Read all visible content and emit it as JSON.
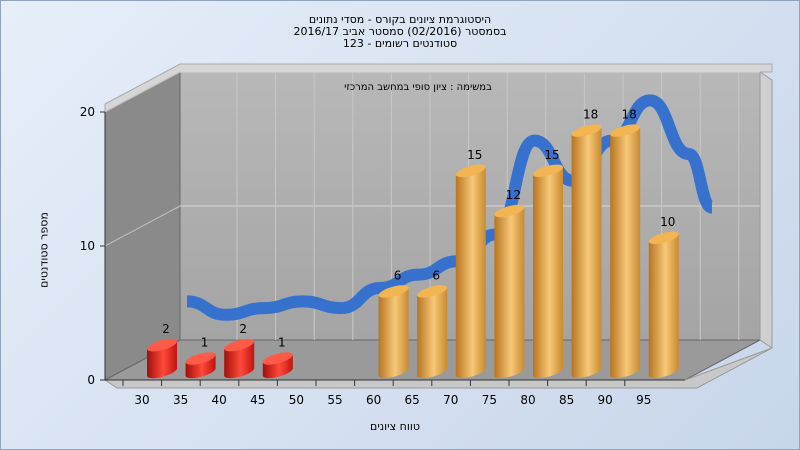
{
  "chart_data": {
    "type": "bar",
    "title_lines": [
      "היסטוגרמת ציונים בקורס - מסדי נתונים",
      "בסמסטר  (02/2016)  סמסטר אביב 2016/17",
      "סטודנטים רשומים - 123"
    ],
    "annotation": "במשימה : ציון סופי במחשב המרכזי",
    "xlabel": "טווח ציונים",
    "ylabel": "מספר סטודנטים",
    "x_ticks": [
      "30",
      "35",
      "40",
      "45",
      "50",
      "55",
      "60",
      "65",
      "70",
      "75",
      "80",
      "85",
      "90",
      "95"
    ],
    "y_ticks": [
      0,
      10,
      20
    ],
    "ylim": [
      0,
      20
    ],
    "bars": [
      {
        "x": 30,
        "value": 2,
        "color": "red"
      },
      {
        "x": 35,
        "value": 1,
        "color": "red"
      },
      {
        "x": 40,
        "value": 2,
        "color": "red"
      },
      {
        "x": 45,
        "value": 1,
        "color": "red"
      },
      {
        "x": 60,
        "value": 6,
        "color": "orange"
      },
      {
        "x": 65,
        "value": 6,
        "color": "orange"
      },
      {
        "x": 70,
        "value": 15,
        "color": "orange"
      },
      {
        "x": 75,
        "value": 12,
        "color": "orange"
      },
      {
        "x": 80,
        "value": 15,
        "color": "orange"
      },
      {
        "x": 85,
        "value": 18,
        "color": "orange"
      },
      {
        "x": 90,
        "value": 18,
        "color": "orange"
      },
      {
        "x": 95,
        "value": 10,
        "color": "orange"
      }
    ],
    "curve": {
      "x": [
        30,
        35,
        40,
        45,
        50,
        55,
        60,
        65,
        70,
        75,
        80,
        85,
        90,
        95,
        98
      ],
      "y": [
        4,
        3,
        3.5,
        4,
        3.5,
        5,
        6,
        7,
        9,
        16,
        13,
        16,
        19,
        15,
        11
      ]
    },
    "grid": true,
    "colors": {
      "red": "#e8201a",
      "orange": "#e8a03c",
      "curve": "#2f6fcf",
      "wall": "#a9a9a9"
    }
  }
}
